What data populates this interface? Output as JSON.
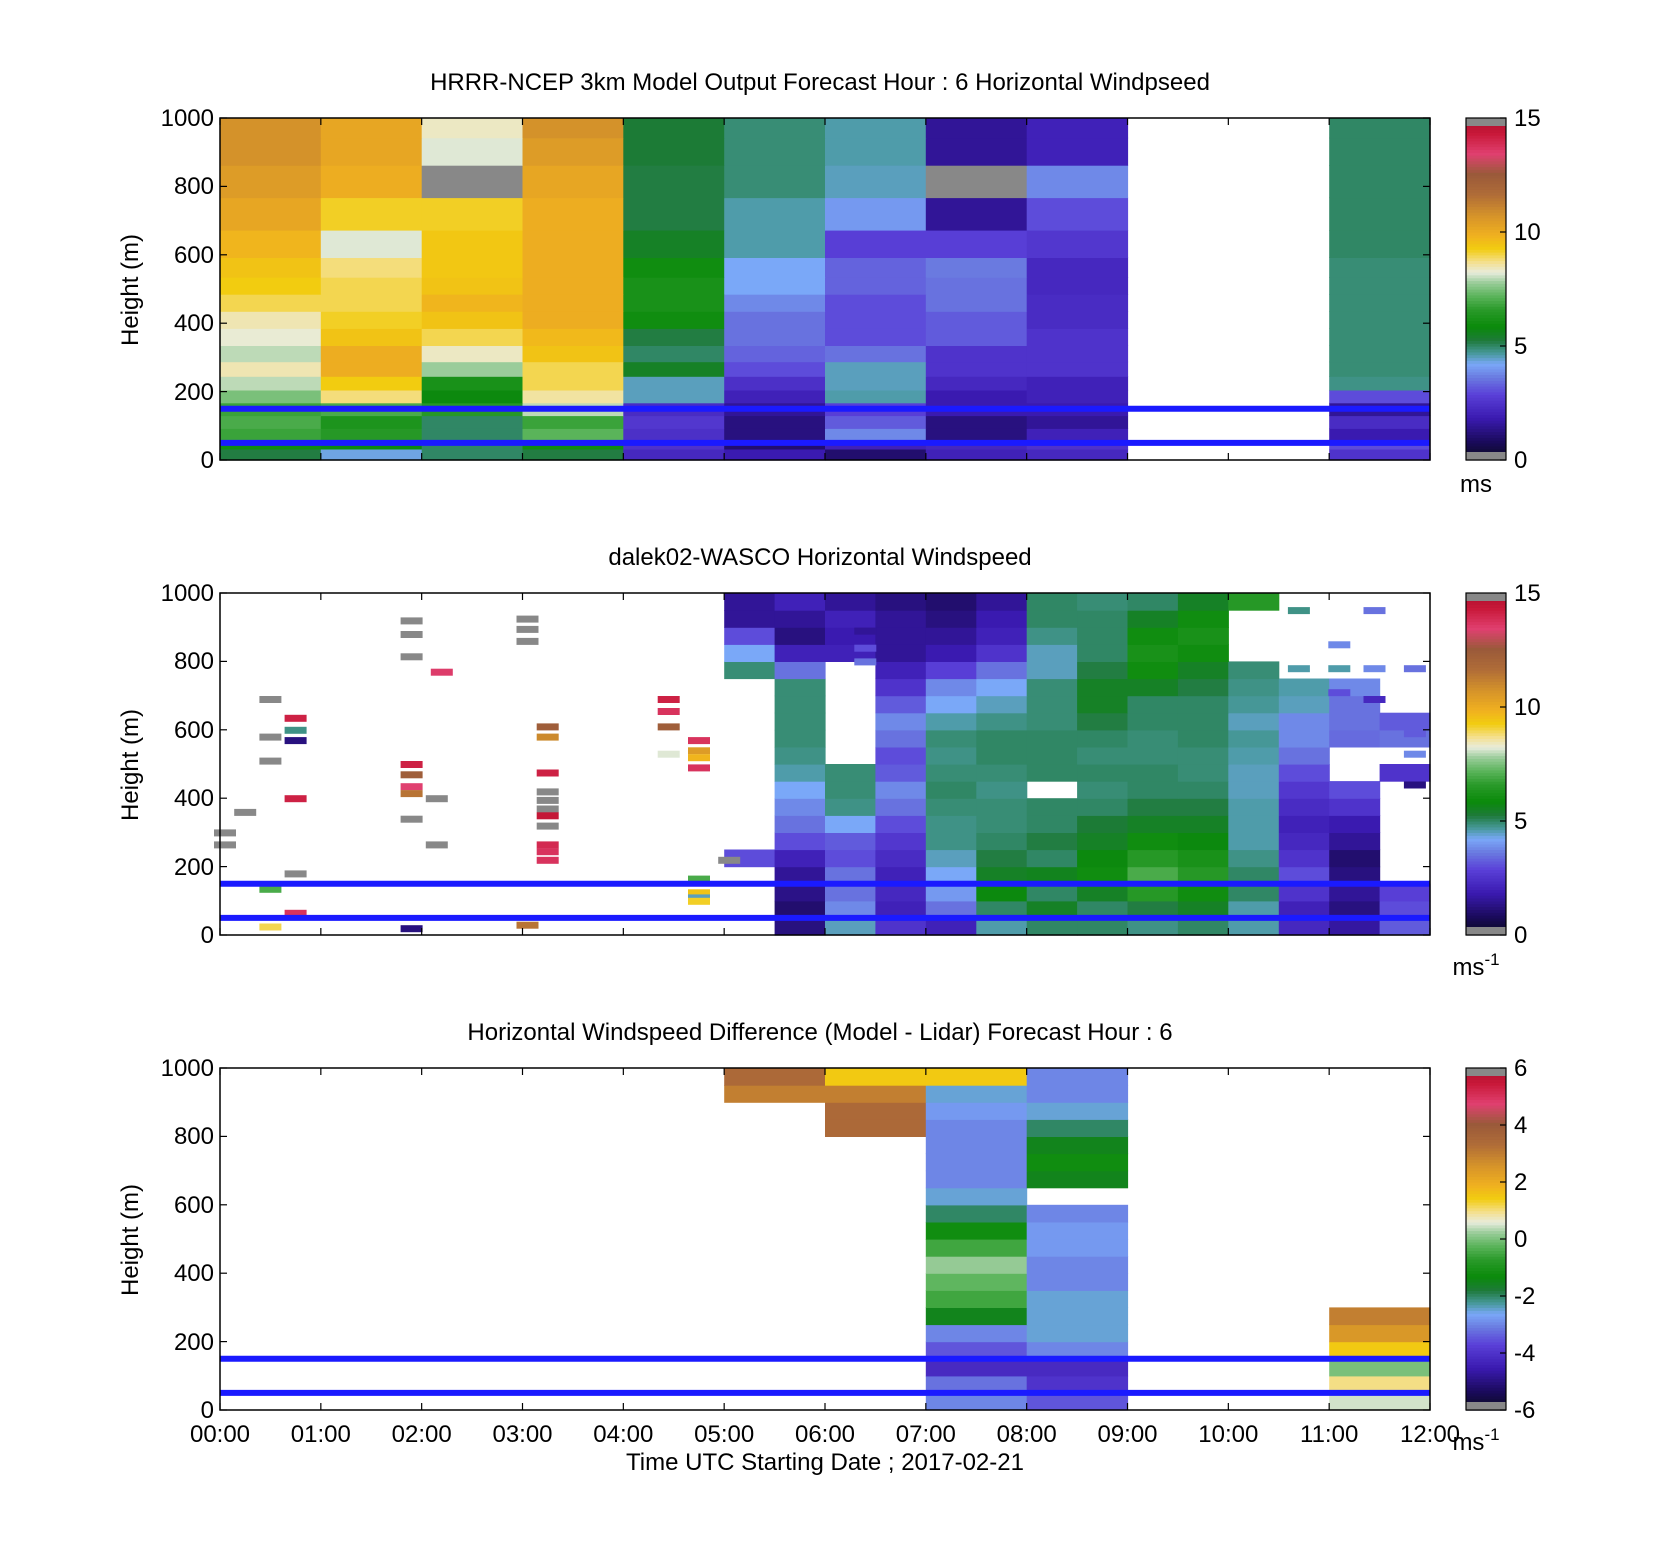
{
  "colors": {
    "overlay_line": "#1a1aff",
    "missing": "#ffffff",
    "out_of_range": "#888888"
  },
  "x_axis": {
    "tick_labels": [
      "00:00",
      "01:00",
      "02:00",
      "03:00",
      "04:00",
      "05:00",
      "06:00",
      "07:00",
      "08:00",
      "09:00",
      "10:00",
      "11:00",
      "12:00"
    ],
    "xlabel": "Time UTC  Starting Date ; 2017-02-21",
    "range_hours": [
      0,
      12
    ]
  },
  "y_axis": {
    "ylabel": "Height (m)",
    "tick_labels": [
      "0",
      "200",
      "400",
      "600",
      "800",
      "1000"
    ],
    "range": [
      0,
      1000
    ]
  },
  "overlay_lines_height_m": [
    50,
    150
  ],
  "chart_data": [
    {
      "type": "heatmap",
      "title": "HRRR-NCEP 3km Model Output   Forecast Hour : 6 Horizontal Windpseed",
      "xlabel": "",
      "ylabel": "Height (m)",
      "xlim": [
        0,
        12
      ],
      "ylim": [
        0,
        1000
      ],
      "colorbar": {
        "min": 0,
        "max": 15,
        "ticks": [
          "0",
          "5",
          "10",
          "15"
        ],
        "unit": "ms",
        "unit_sup": ""
      },
      "column_times_h": [
        0,
        1,
        2,
        3,
        4,
        5,
        6,
        7,
        8,
        9,
        10,
        11
      ],
      "level_heights_m": [
        20,
        45,
        75,
        110,
        150,
        185,
        225,
        265,
        310,
        360,
        410,
        460,
        510,
        560,
        625,
        720,
        815,
        910,
        975
      ],
      "values": [
        [
          5.2,
          4.3,
          5.0,
          5.2,
          2.2,
          1.8,
          1.0,
          2.0,
          2.2,
          null,
          null,
          2.5
        ],
        [
          6.0,
          5.8,
          5.0,
          6.0,
          2.5,
          1.0,
          2.0,
          2.2,
          2.5,
          null,
          null,
          3.0
        ],
        [
          6.8,
          6.5,
          5.0,
          7.2,
          2.4,
          1.2,
          3.8,
          1.2,
          2.0,
          null,
          null,
          1.8
        ],
        [
          7.0,
          6.3,
          5.0,
          6.8,
          2.6,
          1.2,
          3.2,
          1.2,
          1.5,
          null,
          null,
          2.3
        ],
        [
          6.8,
          7.0,
          6.5,
          8.0,
          2.3,
          1.5,
          2.8,
          1.8,
          1.8,
          null,
          null,
          1.5
        ],
        [
          7.5,
          8.8,
          5.8,
          8.6,
          4.5,
          2.0,
          4.6,
          1.8,
          2.0,
          null,
          null,
          3.0
        ],
        [
          8.0,
          9.3,
          6.2,
          9.0,
          4.5,
          2.4,
          4.5,
          2.2,
          2.0,
          null,
          null,
          4.8
        ],
        [
          8.5,
          10.0,
          7.8,
          9.0,
          5.5,
          3.0,
          4.5,
          2.5,
          2.5,
          null,
          null,
          4.9
        ],
        [
          8.0,
          10.0,
          8.4,
          9.5,
          5.0,
          3.3,
          3.5,
          2.5,
          2.5,
          null,
          null,
          4.9
        ],
        [
          8.3,
          9.5,
          9.0,
          9.7,
          5.2,
          3.5,
          3.0,
          3.2,
          2.5,
          null,
          null,
          4.9
        ],
        [
          8.5,
          9.2,
          9.5,
          10.0,
          6.0,
          3.5,
          3.0,
          3.2,
          2.3,
          null,
          null,
          4.9
        ],
        [
          9.0,
          9.0,
          9.8,
          10.0,
          6.2,
          3.8,
          3.0,
          3.5,
          2.3,
          null,
          null,
          4.9
        ],
        [
          9.3,
          9.0,
          9.5,
          10.0,
          6.2,
          4.2,
          3.3,
          3.5,
          2.2,
          null,
          null,
          4.9
        ],
        [
          9.5,
          8.8,
          9.4,
          10.0,
          6.0,
          4.2,
          3.3,
          3.6,
          2.2,
          null,
          null,
          4.9
        ],
        [
          9.8,
          8.2,
          9.4,
          10.0,
          5.5,
          4.6,
          2.8,
          2.8,
          2.6,
          null,
          null,
          5.0
        ],
        [
          10.2,
          9.2,
          9.2,
          10.0,
          5.2,
          4.6,
          4.0,
          1.5,
          3.0,
          null,
          null,
          5.0
        ],
        [
          10.5,
          10.0,
          15.8,
          10.2,
          5.2,
          4.9,
          4.5,
          15.8,
          3.8,
          null,
          null,
          5.0
        ],
        [
          10.8,
          10.2,
          8.2,
          10.5,
          5.3,
          4.9,
          4.6,
          1.5,
          2.0,
          null,
          null,
          5.0
        ],
        [
          10.8,
          10.2,
          8.4,
          10.8,
          5.3,
          4.9,
          4.6,
          1.5,
          2.0,
          null,
          null,
          5.0
        ]
      ]
    },
    {
      "type": "heatmap",
      "title": "dalek02-WASCO  Horizontal Windspeed",
      "xlabel": "",
      "ylabel": "Height (m)",
      "xlim": [
        0,
        12
      ],
      "ylim": [
        0,
        1000
      ],
      "colorbar": {
        "min": 0,
        "max": 15,
        "ticks": [
          "0",
          "5",
          "10",
          "15"
        ],
        "unit": "ms",
        "unit_sup": "-1"
      },
      "column_times_h": [
        5.0,
        5.5,
        6.0,
        6.5,
        7.0,
        7.5,
        8.0,
        8.5,
        9.0,
        9.5,
        10.0,
        10.5,
        11.0,
        11.5
      ],
      "level_heights_m": [
        25,
        75,
        125,
        175,
        225,
        275,
        325,
        375,
        425,
        475,
        525,
        575,
        625,
        675,
        725,
        775,
        825,
        875,
        925,
        975
      ],
      "values": [
        [
          null,
          1.2,
          4.5,
          2.5,
          2.0,
          4.6,
          5.0,
          5.0,
          4.8,
          5.0,
          4.6,
          2.2,
          1.6,
          3.2
        ],
        [
          null,
          1.0,
          3.8,
          2.0,
          3.5,
          5.0,
          5.5,
          5.0,
          5.2,
          5.5,
          4.6,
          2.0,
          1.2,
          3.0
        ],
        [
          null,
          1.3,
          3.5,
          2.2,
          4.0,
          5.8,
          5.0,
          5.5,
          6.5,
          6.0,
          5.0,
          2.5,
          1.5,
          2.8
        ],
        [
          null,
          1.5,
          3.5,
          2.0,
          4.2,
          5.5,
          5.6,
          6.0,
          7.0,
          6.5,
          5.0,
          3.0,
          1.2,
          null
        ],
        [
          3.0,
          2.0,
          3.0,
          2.3,
          4.5,
          5.2,
          5.0,
          5.8,
          6.5,
          6.2,
          4.8,
          2.5,
          1.0,
          null
        ],
        [
          null,
          3.0,
          3.2,
          2.6,
          4.8,
          5.0,
          5.2,
          5.5,
          6.0,
          5.8,
          4.6,
          2.2,
          1.5,
          null
        ],
        [
          null,
          3.5,
          4.2,
          3.0,
          4.8,
          4.9,
          5.0,
          5.3,
          5.5,
          5.5,
          4.6,
          2.0,
          1.8,
          null
        ],
        [
          null,
          3.8,
          4.8,
          3.5,
          4.9,
          4.9,
          5.0,
          5.0,
          5.2,
          5.2,
          4.6,
          2.3,
          2.5,
          null
        ],
        [
          null,
          4.2,
          4.9,
          3.8,
          5.0,
          4.8,
          null,
          4.9,
          5.0,
          5.0,
          4.5,
          2.6,
          3.0,
          null
        ],
        [
          null,
          4.6,
          4.9,
          3.2,
          4.9,
          4.9,
          5.0,
          5.0,
          5.0,
          4.9,
          4.5,
          3.0,
          null,
          2.5
        ],
        [
          null,
          4.8,
          null,
          3.0,
          4.8,
          5.0,
          5.0,
          4.9,
          4.9,
          4.9,
          4.6,
          3.5,
          null,
          null
        ],
        [
          null,
          4.9,
          null,
          3.5,
          4.9,
          5.0,
          5.0,
          5.0,
          4.9,
          5.0,
          4.7,
          3.8,
          3.4,
          3.5
        ],
        [
          null,
          4.9,
          null,
          3.8,
          4.6,
          4.8,
          4.9,
          5.2,
          5.0,
          5.0,
          4.5,
          3.8,
          3.5,
          3.2
        ],
        [
          null,
          4.9,
          null,
          3.2,
          4.2,
          4.5,
          4.9,
          5.5,
          5.0,
          5.0,
          4.7,
          4.5,
          3.5,
          null
        ],
        [
          null,
          4.9,
          null,
          2.5,
          3.8,
          4.2,
          4.9,
          5.5,
          5.5,
          5.2,
          4.8,
          4.6,
          3.8,
          null
        ],
        [
          4.9,
          3.5,
          null,
          2.0,
          2.8,
          3.5,
          4.5,
          5.2,
          6.0,
          5.5,
          4.9,
          null,
          null,
          null
        ],
        [
          4.2,
          2.0,
          2.0,
          1.5,
          1.8,
          2.5,
          4.5,
          5.0,
          6.2,
          6.0,
          null,
          null,
          null,
          null
        ],
        [
          3.0,
          1.2,
          1.8,
          1.5,
          1.5,
          2.0,
          4.8,
          5.0,
          6.0,
          6.2,
          null,
          null,
          null,
          null
        ],
        [
          1.5,
          1.5,
          2.0,
          1.5,
          1.2,
          1.8,
          5.0,
          5.0,
          5.5,
          6.0,
          null,
          null,
          null,
          null
        ],
        [
          1.5,
          2.0,
          1.5,
          1.2,
          1.0,
          1.5,
          5.0,
          4.9,
          5.0,
          5.5,
          6.5,
          null,
          null,
          null
        ]
      ]
    },
    {
      "type": "heatmap",
      "title": "Horizontal Windspeed Difference (Model - Lidar) Forecast Hour : 6",
      "xlabel": "Time UTC  Starting Date ; 2017-02-21",
      "ylabel": "Height (m)",
      "xlim": [
        0,
        12
      ],
      "ylim": [
        0,
        1000
      ],
      "colorbar": {
        "min": -6,
        "max": 6,
        "ticks": [
          "-6",
          "-4",
          "-2",
          "0",
          "2",
          "4",
          "6"
        ],
        "unit": "ms",
        "unit_sup": "-1"
      },
      "column_times_h": [
        5,
        6,
        7,
        8,
        11
      ],
      "level_heights_m": [
        25,
        75,
        125,
        175,
        225,
        275,
        325,
        375,
        425,
        475,
        525,
        575,
        625,
        675,
        725,
        775,
        825,
        875,
        925,
        975
      ],
      "values": [
        [
          null,
          null,
          -3.0,
          -3.5,
          0.5
        ],
        [
          null,
          null,
          -3.2,
          -4.0,
          1.0
        ],
        [
          null,
          null,
          -4.2,
          -4.2,
          0.0
        ],
        [
          null,
          null,
          -3.5,
          -3.0,
          1.5
        ],
        [
          null,
          null,
          -3.0,
          -2.5,
          2.5
        ],
        [
          null,
          null,
          -1.5,
          -2.5,
          3.0
        ],
        [
          null,
          null,
          -0.5,
          -2.5,
          null
        ],
        [
          null,
          null,
          -0.2,
          -3.0,
          null
        ],
        [
          null,
          null,
          0.2,
          -3.0,
          null
        ],
        [
          null,
          null,
          -0.5,
          -2.8,
          null
        ],
        [
          null,
          null,
          -1.2,
          -2.8,
          null
        ],
        [
          null,
          null,
          -2.0,
          -3.0,
          null
        ],
        [
          null,
          null,
          -2.5,
          null,
          null
        ],
        [
          null,
          null,
          -3.0,
          -1.5,
          null
        ],
        [
          null,
          null,
          -3.0,
          -1.2,
          null
        ],
        [
          null,
          null,
          -3.0,
          -1.5,
          null
        ],
        [
          null,
          3.5,
          -3.0,
          -2.0,
          null
        ],
        [
          null,
          3.5,
          -2.8,
          -2.5,
          null
        ],
        [
          3.0,
          3.0,
          -2.5,
          -3.0,
          null
        ],
        [
          3.5,
          1.5,
          1.5,
          -3.0,
          null
        ]
      ]
    }
  ]
}
